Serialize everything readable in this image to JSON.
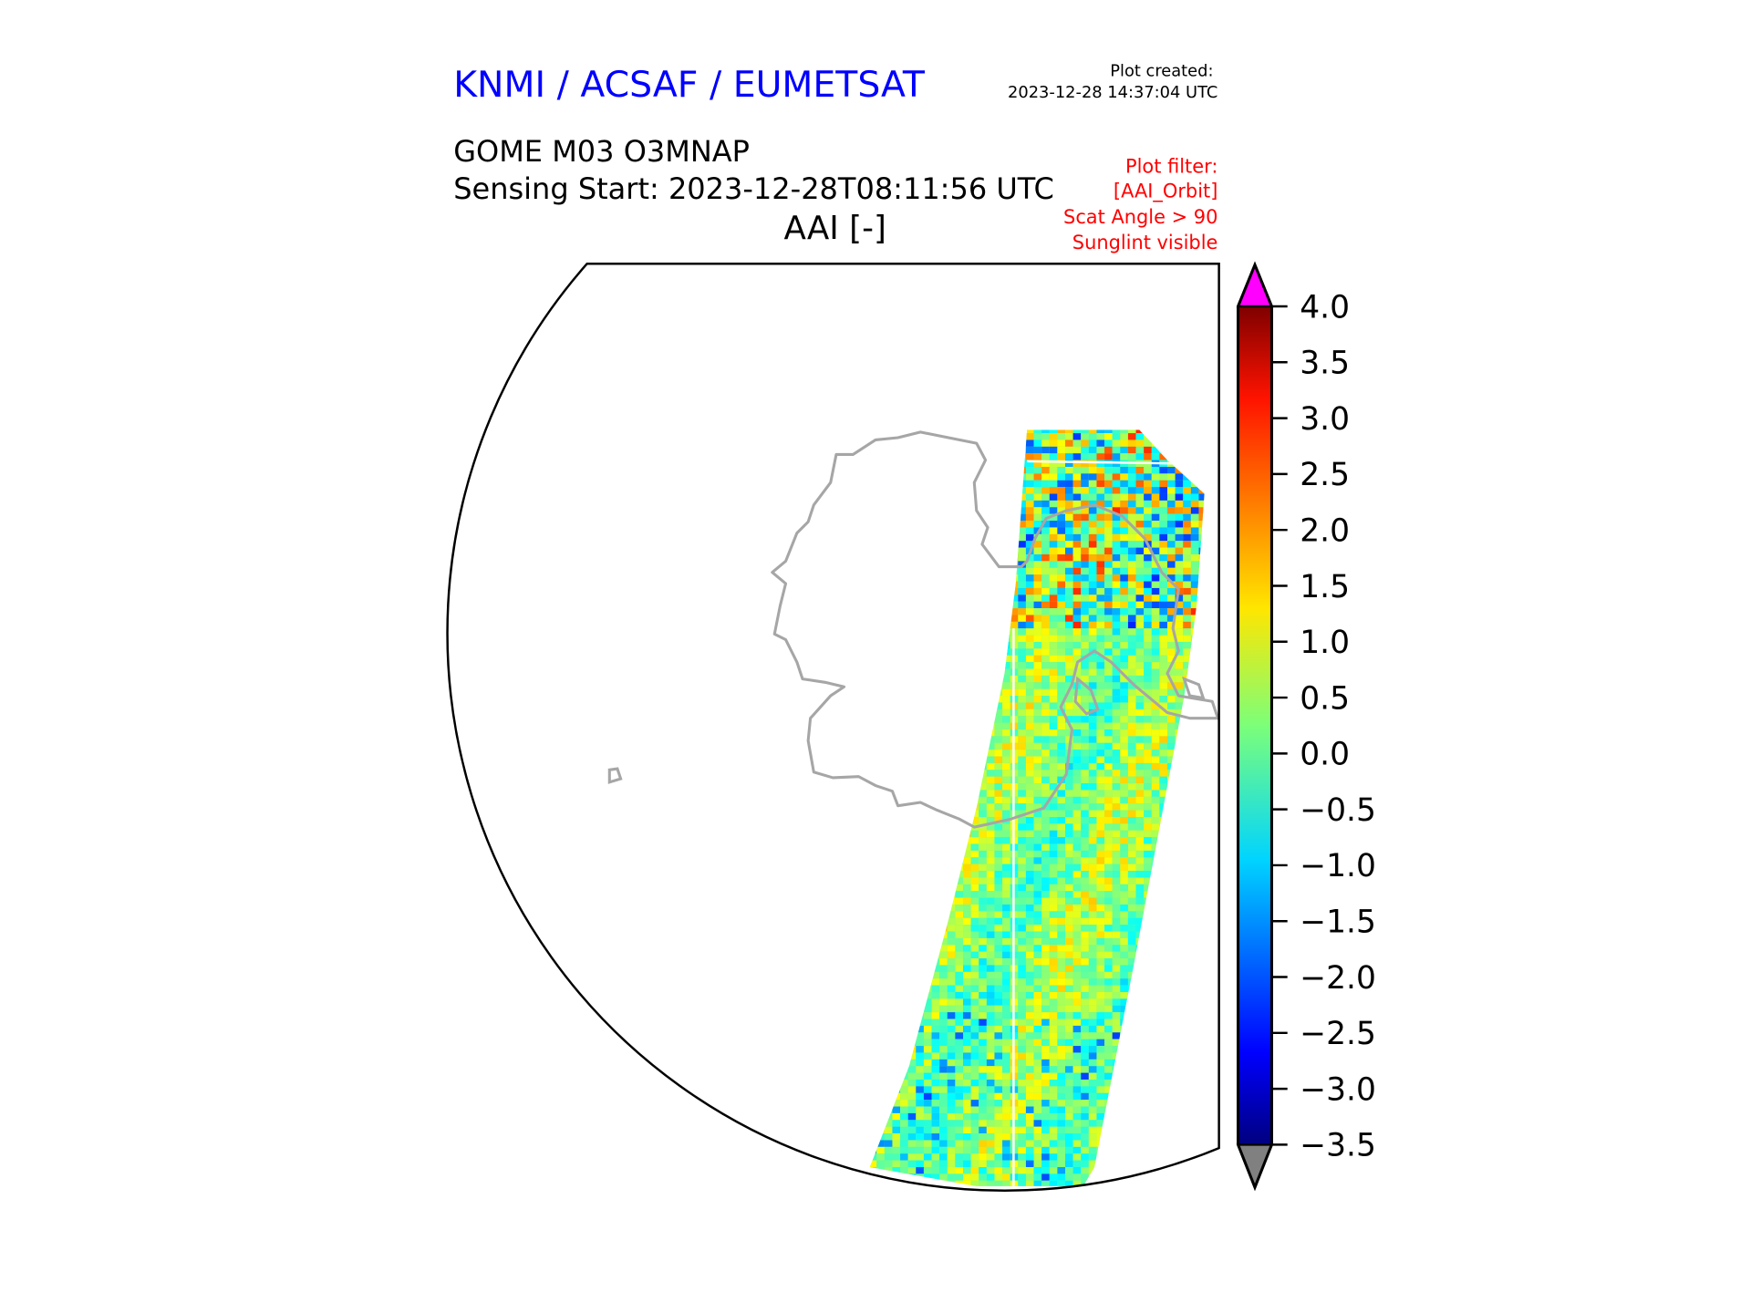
{
  "header": {
    "brand": "KNMI / ACSAF / EUMETSAT",
    "plot_created_label": "Plot created:",
    "plot_created_value": "2023-12-28 14:37:04 UTC",
    "product": "GOME M03 O3MNAP",
    "sensing_start": "Sensing Start: 2023-12-28T08:11:56 UTC",
    "variable": "AAI [-]",
    "filter_lines": [
      "Plot filter:",
      "[AAI_Orbit]",
      "Scat Angle > 90",
      "Sunglint visible"
    ]
  },
  "colors": {
    "brand": "#0000ff",
    "filter": "#ff0000",
    "coastline": "#a6a6a6",
    "over": "#ff00ff",
    "under": "#808080"
  },
  "colorbar": {
    "min": -3.5,
    "max": 4.0,
    "colormap": "jet",
    "ticks": [
      "4.0",
      "3.5",
      "3.0",
      "2.5",
      "2.0",
      "1.5",
      "1.0",
      "0.5",
      "0.0",
      "−0.5",
      "−1.0",
      "−1.5",
      "−2.0",
      "−2.5",
      "−3.0",
      "−3.5"
    ],
    "tick_values": [
      4.0,
      3.5,
      3.0,
      2.5,
      2.0,
      1.5,
      1.0,
      0.5,
      0.0,
      -0.5,
      -1.0,
      -1.5,
      -2.0,
      -2.5,
      -3.0,
      -3.5
    ],
    "extend": "both"
  }
}
